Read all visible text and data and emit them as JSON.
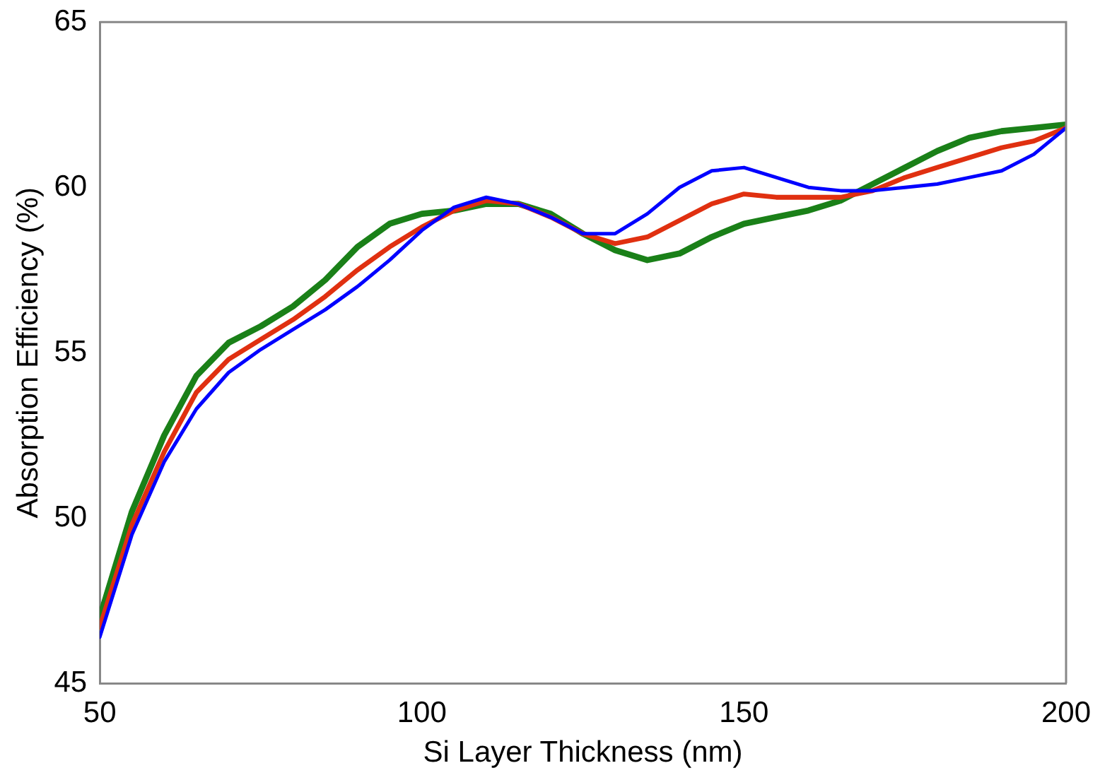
{
  "chart_data": {
    "type": "line",
    "xlabel": "Si Layer Thickness (nm)",
    "ylabel": "Absorption Efficiency (%)",
    "x": [
      50,
      55,
      60,
      65,
      70,
      75,
      80,
      85,
      90,
      95,
      100,
      105,
      110,
      115,
      120,
      125,
      130,
      135,
      140,
      145,
      150,
      155,
      160,
      165,
      170,
      175,
      180,
      185,
      190,
      195,
      200
    ],
    "series": [
      {
        "color": "#0000ff",
        "values": [
          46.4,
          49.5,
          51.7,
          53.3,
          54.4,
          55.1,
          55.7,
          56.3,
          57.0,
          57.8,
          58.7,
          59.4,
          59.7,
          59.5,
          59.1,
          58.6,
          58.6,
          59.2,
          60.0,
          60.5,
          60.6,
          60.3,
          60.0,
          59.9,
          59.9,
          60.0,
          60.1,
          60.3,
          60.5,
          61.0,
          61.8
        ]
      },
      {
        "color": "#e03010",
        "values": [
          46.7,
          49.8,
          52.0,
          53.8,
          54.8,
          55.4,
          56.0,
          56.7,
          57.5,
          58.2,
          58.8,
          59.3,
          59.6,
          59.5,
          59.1,
          58.6,
          58.3,
          58.5,
          59.0,
          59.5,
          59.8,
          59.7,
          59.7,
          59.7,
          59.9,
          60.3,
          60.6,
          60.9,
          61.2,
          61.4,
          61.8
        ]
      },
      {
        "color": "#1a8018",
        "values": [
          47.0,
          50.2,
          52.5,
          54.3,
          55.3,
          55.8,
          56.4,
          57.2,
          58.2,
          58.9,
          59.2,
          59.3,
          59.5,
          59.5,
          59.2,
          58.6,
          58.1,
          57.8,
          58.0,
          58.5,
          58.9,
          59.1,
          59.3,
          59.6,
          60.1,
          60.6,
          61.1,
          61.5,
          61.7,
          61.8,
          61.9
        ]
      }
    ],
    "xlim": [
      50,
      200
    ],
    "xticks": [
      50,
      100,
      150,
      200
    ],
    "ylim": [
      45,
      65
    ],
    "yticks": [
      45,
      50,
      55,
      60,
      65
    ],
    "grid": false,
    "legend": false,
    "marker": "none",
    "line_style": "solid"
  }
}
